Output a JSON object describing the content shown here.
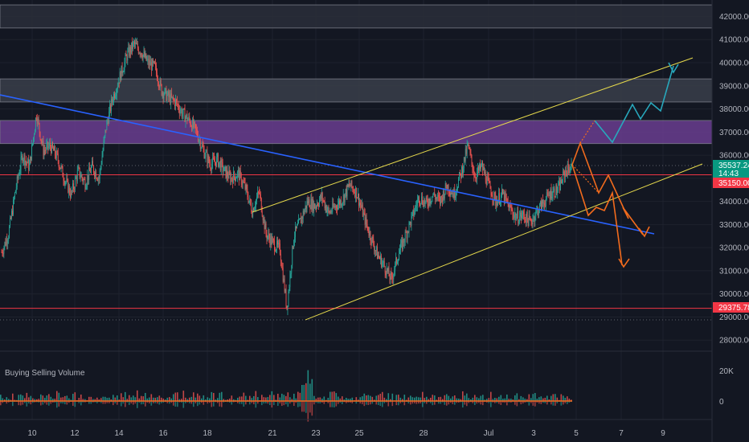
{
  "chart_data": {
    "type": "candlestick",
    "indicator_title": "Buying Selling Volume",
    "y_axis_ticks": [
      "42000.00",
      "41000.00",
      "40000.00",
      "39000.00",
      "38000.00",
      "37000.00",
      "36000.00",
      "35000.00",
      "34000.00",
      "33000.00",
      "32000.00",
      "31000.00",
      "30000.00",
      "29000.00",
      "28000.00"
    ],
    "volume_axis_ticks": [
      "20K",
      "0"
    ],
    "x_axis_ticks": [
      "10",
      "12",
      "14",
      "16",
      "18",
      "21",
      "23",
      "25",
      "28",
      "Jul",
      "3",
      "5",
      "7",
      "9"
    ],
    "ylim": [
      27800,
      42600
    ],
    "price_tags": {
      "current_price": "35537.24",
      "countdown": "14:43",
      "level_high": "35150.00",
      "level_low": "29375.78"
    },
    "horizontal_lines": [
      35150,
      29375.78
    ],
    "zones": [
      {
        "from": 41500,
        "to": 42500,
        "color": "#2a2e39"
      },
      {
        "from": 38300,
        "to": 39300,
        "color": "#3a3e4a"
      },
      {
        "from": 36500,
        "to": 37500,
        "color": "#6a3d8f"
      }
    ],
    "close_series": [
      31800,
      32600,
      34500,
      36000,
      35500,
      37800,
      36200,
      36400,
      35900,
      35000,
      34300,
      35300,
      34800,
      35500,
      35000,
      37200,
      38500,
      39400,
      40300,
      40800,
      40500,
      40000,
      39800,
      38800,
      38500,
      38300,
      37800,
      37500,
      37000,
      36200,
      35600,
      35800,
      35300,
      35000,
      35200,
      34600,
      33600,
      34400,
      32600,
      32200,
      31900,
      29400,
      32500,
      33200,
      34000,
      33800,
      34200,
      33500,
      33800,
      34100,
      34700,
      34400,
      33400,
      32500,
      31700,
      31200,
      30600,
      31700,
      32500,
      33300,
      34200,
      33900,
      34300,
      34000,
      34700,
      34300,
      35200,
      36400,
      35100,
      35500,
      34700,
      34000,
      34300,
      33700,
      33300,
      33400,
      33100,
      33600,
      34000,
      34400,
      34500,
      35300,
      35537
    ],
    "annotations": {
      "colors": {
        "trendline": "#2962ff",
        "channel": "#e6d94c",
        "bull_path": "#28a8bc",
        "bear_path": "#f26b1d",
        "level": "#f23645",
        "price_tag": "#089981"
      }
    }
  }
}
